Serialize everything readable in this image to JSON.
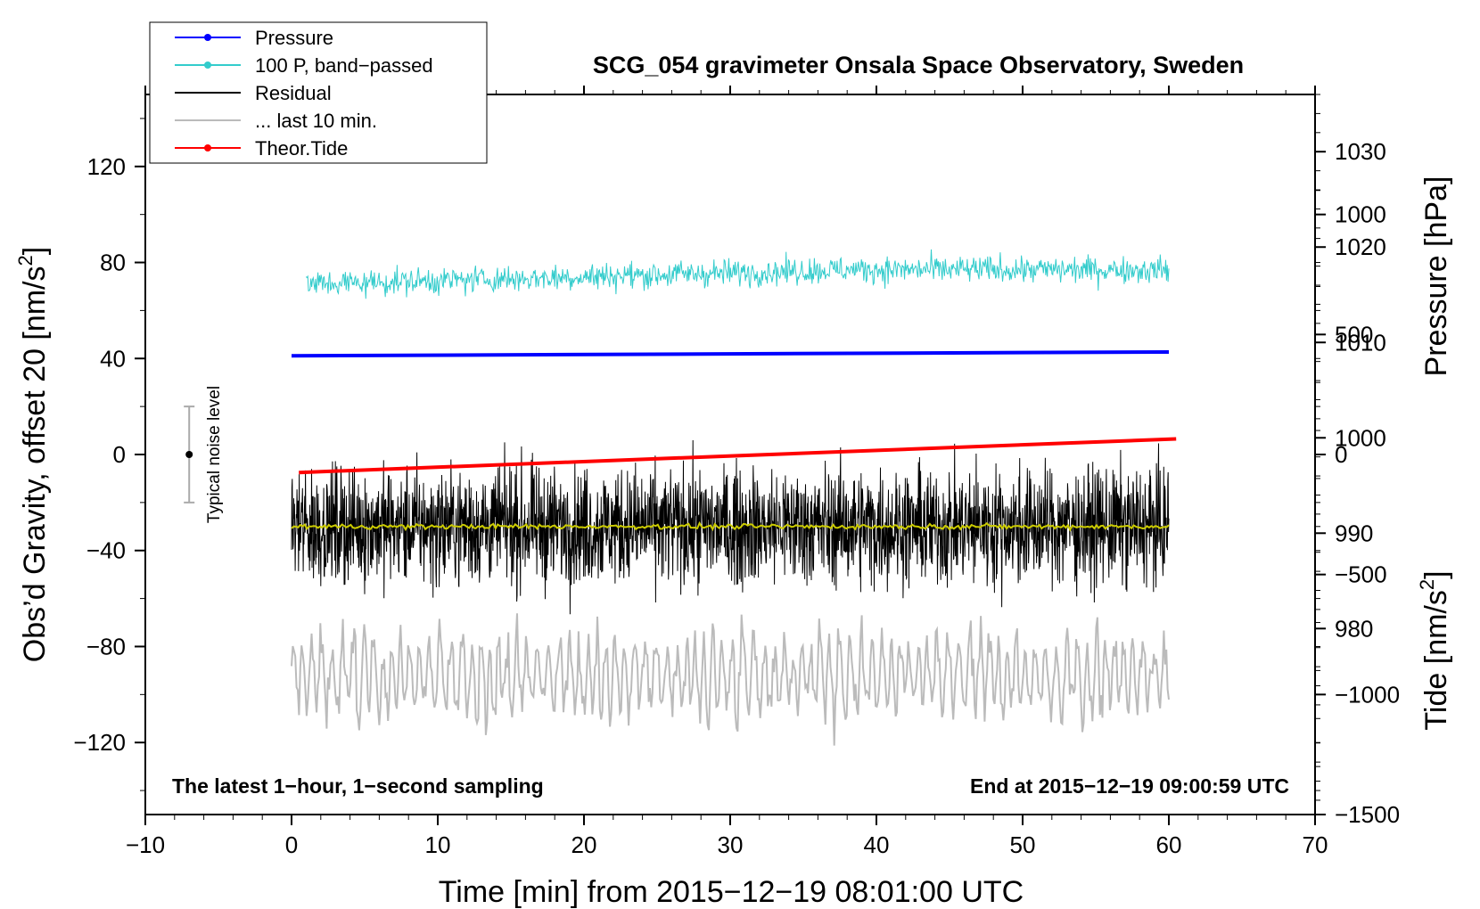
{
  "chart_data": {
    "type": "line",
    "title": "SCG_054 gravimeter Onsala Space Observatory, Sweden",
    "xlabel": "Time [min] from 2015−12−19 08:01:00 UTC",
    "ylabel_main": "Obs’d Gravity, offset 20 [nm/s",
    "ylabel_main_sup": "2",
    "ylabel_main_end": "]",
    "ylabel_pressure": "Pressure [hPa]",
    "ylabel_tide": "Tide [nm/s",
    "ylabel_tide_sup": "2",
    "ylabel_tide_end": "]",
    "xlim": [
      -10,
      70
    ],
    "ylim": [
      -150,
      150
    ],
    "pressure_lim": [
      960.5,
      1036
    ],
    "tide_lim": [
      -1500,
      1500
    ],
    "x_ticks": [
      -10,
      0,
      10,
      20,
      30,
      40,
      50,
      60,
      70
    ],
    "x_tick_labels": [
      "−10",
      "0",
      "10",
      "20",
      "30",
      "40",
      "50",
      "60",
      "70"
    ],
    "y_ticks": [
      120,
      80,
      40,
      0,
      -40,
      -80,
      -120
    ],
    "y_tick_labels": [
      "120",
      "80",
      "40",
      "0",
      "−40",
      "−80",
      "−120"
    ],
    "pressure_ticks": [
      1030,
      1020,
      1010,
      1000,
      990,
      980
    ],
    "pressure_tick_labels": [
      "1030",
      "1020",
      "1010",
      "1000",
      "990",
      "980"
    ],
    "tide_ticks": [
      1000,
      500,
      0,
      -500,
      -1000,
      -1500
    ],
    "tide_tick_labels": [
      "1000",
      "500",
      "0",
      "−500",
      "−1000",
      "−1500"
    ],
    "note_left": "The latest 1−hour, 1−second sampling",
    "note_right": "End at 2015−12−19 09:00:59 UTC",
    "noise_label": "Typical noise level",
    "noise_bar": {
      "x": -7,
      "center": 0,
      "low": -20,
      "high": 20
    },
    "legend": [
      {
        "label": "Pressure",
        "color": "#0000ff",
        "marker": true
      },
      {
        "label": "100 P, band−passed",
        "color": "#33cccc",
        "marker": true
      },
      {
        "label": "Residual",
        "color": "#000000",
        "marker": false
      },
      {
        "label": "... last 10 min.",
        "color": "#bbbbbb",
        "marker": false
      },
      {
        "label": "Theor.Tide",
        "color": "#ff0000",
        "marker": true
      }
    ],
    "series": [
      {
        "name": "Pressure",
        "axis": "pressure",
        "color": "#0000ff",
        "x": [
          0,
          60
        ],
        "values": [
          1008.6,
          1009.0
        ]
      },
      {
        "name": "100 P, band-passed",
        "axis": "main",
        "color": "#33cccc",
        "x_range": [
          1,
          60
        ],
        "mean": [
          71,
          77
        ],
        "noise_amplitude": 5
      },
      {
        "name": "Residual",
        "axis": "main",
        "color": "#000000",
        "x_range": [
          0,
          60
        ],
        "mean": -30,
        "noise_amplitude": 16
      },
      {
        "name": "Residual mean",
        "axis": "main",
        "color": "#cccc00",
        "x_range": [
          0,
          60
        ],
        "mean": -30,
        "noise_amplitude": 1
      },
      {
        "name": "... last 10 min.",
        "axis": "main",
        "color": "#bbbbbb",
        "x_range": [
          0,
          60
        ],
        "mean": -92,
        "noise_amplitude": 13
      },
      {
        "name": "Theor.Tide",
        "axis": "tide",
        "color": "#ff0000",
        "x": [
          0.5,
          60.5
        ],
        "values": [
          -75,
          65
        ]
      }
    ]
  }
}
